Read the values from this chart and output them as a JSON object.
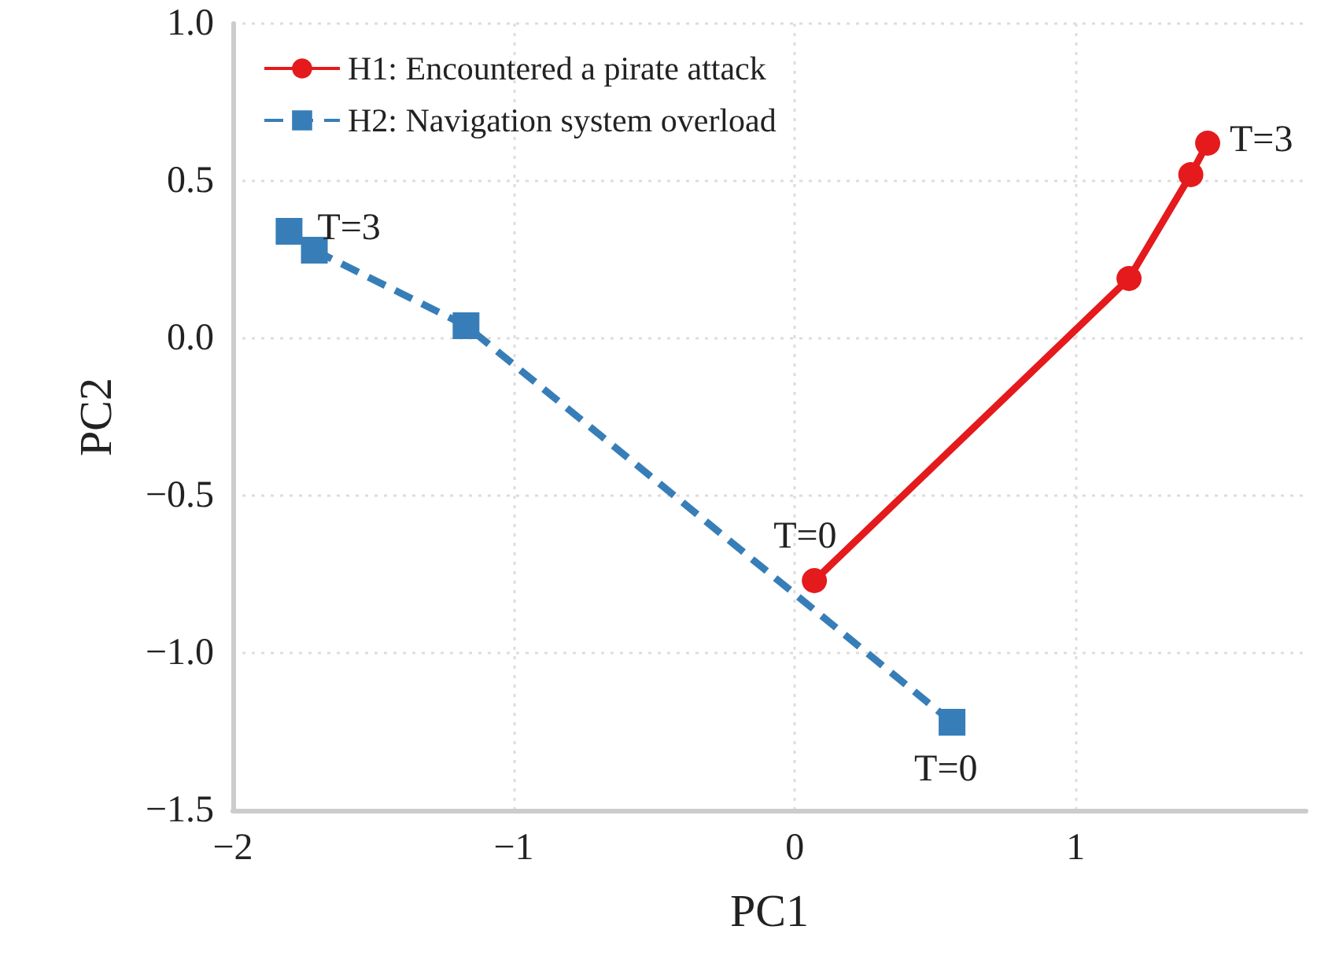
{
  "chart_data": {
    "type": "line",
    "xlabel": "PC1",
    "ylabel": "PC2",
    "xlim": [
      -2,
      1.82
    ],
    "xticks": [
      {
        "value": -2,
        "label": "−2"
      },
      {
        "value": -1,
        "label": "−1"
      },
      0,
      1
    ],
    "ylim": [
      -1.5,
      1.0
    ],
    "yticks": [
      {
        "value": -1.5,
        "label": "−1.5"
      },
      {
        "value": -1.0,
        "label": "−1.0"
      },
      {
        "value": -0.5,
        "label": "−0.5"
      },
      {
        "value": 0.0,
        "label": "0.0"
      },
      {
        "value": 0.5,
        "label": "0.5"
      },
      {
        "value": 1.0,
        "label": "1.0"
      }
    ],
    "grid": true,
    "legend": "top left",
    "series": [
      {
        "name": "H1: Encountered a pirate attack",
        "color": "#e41a1c",
        "marker": "circle",
        "line_style": "solid",
        "x": [
          0.07,
          1.19,
          1.41,
          1.47
        ],
        "values": [
          -0.77,
          0.19,
          0.52,
          0.62
        ]
      },
      {
        "name": "H2: Navigation system overload",
        "color": "#377eb8",
        "marker": "square",
        "line_style": "dashed",
        "x": [
          0.56,
          -1.17,
          -1.71,
          -1.8
        ],
        "values": [
          -1.22,
          0.04,
          0.28,
          0.34
        ]
      }
    ],
    "annotations": [
      {
        "text": "T=0",
        "x": 0.07,
        "y": -0.77
      },
      {
        "text": "T=3",
        "x": 1.47,
        "y": 0.62
      },
      {
        "text": "T=0",
        "x": 0.56,
        "y": -1.22
      },
      {
        "text": "T=3",
        "x": -1.8,
        "y": 0.34
      }
    ]
  }
}
